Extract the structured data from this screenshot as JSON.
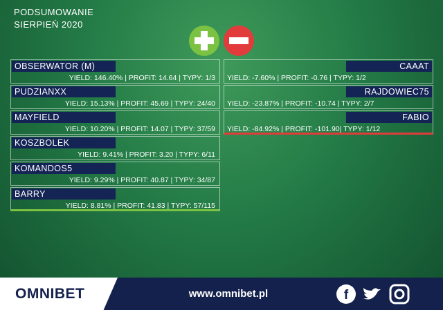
{
  "header": {
    "title": "PODSUMOWANIE",
    "subtitle": "SIERPIEŃ 2020"
  },
  "left": [
    {
      "name": "OBSERWATOR (M)",
      "stats": "YIELD: 146.40% | PROFIT: 14.64 | TYPY: 1/3"
    },
    {
      "name": "PUDZIANXX",
      "stats": "YIELD: 15.13% | PROFIT: 45.69 | TYPY: 24/40"
    },
    {
      "name": "MAYFIELD",
      "stats": "YIELD: 10.20% | PROFIT: 14.07 | TYPY: 37/59"
    },
    {
      "name": "KOSZBOLEK",
      "stats": "YIELD: 9.41% | PROFIT: 3.20 | TYPY: 6/11"
    },
    {
      "name": "KOMANDOS5",
      "stats": "YIELD: 9.29% | PROFIT: 40.87 | TYPY: 34/87"
    },
    {
      "name": "BARRY",
      "stats": "YIELD: 8.81% | PROFIT: 41.83 | TYPY: 57/115"
    }
  ],
  "right": [
    {
      "name": "CAAAT",
      "stats": "YIELD: -7.60% | PROFIT: -0.76 | TYPY: 1/2"
    },
    {
      "name": "RAJDOWIEC75",
      "stats": "YIELD: -23.87% | PROFIT: -10.74 | TYPY: 2/7"
    },
    {
      "name": "FABIO",
      "stats": "YIELD: -84.92% | PROFIT: -101.90| TYPY: 1/12"
    }
  ],
  "footer": {
    "logo": "OMNIBET",
    "url": "www.omnibet.pl"
  }
}
